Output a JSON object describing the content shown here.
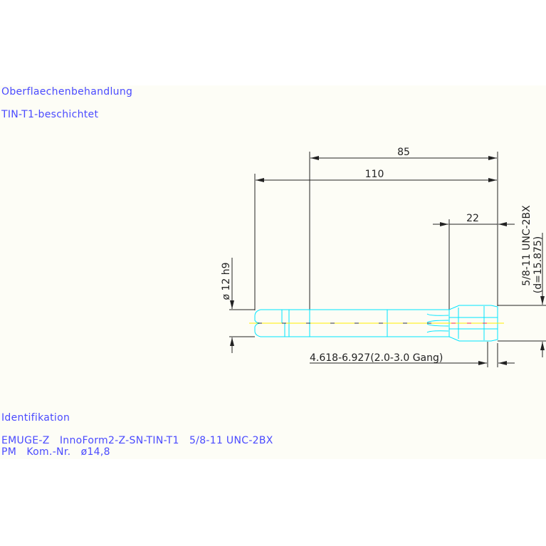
{
  "surface": {
    "heading": "Oberflaechenbehandlung",
    "value": "TIN-T1-beschichtet"
  },
  "identification": {
    "heading": "Identifikation",
    "line1": "EMUGE-Z   InnoForm2-Z-SN-TIN-T1   5/8-11 UNC-2BX",
    "line2": "PM   Kom.-Nr.   ø14,8"
  },
  "dimensions": {
    "overall_length": "110",
    "length_85": "85",
    "thread_length": "22",
    "shank_diameter": "ø 12 h9",
    "thread_spec": "5/8-11 UNC-2BX",
    "thread_diameter": "(d=15.875)",
    "chamfer": "4.618-6.927(2.0-3.0 Gang)"
  },
  "colors": {
    "text": "#4a4aff",
    "outline": "#00e5ff",
    "centerline": "#ffee00",
    "dimension": "#222222"
  }
}
